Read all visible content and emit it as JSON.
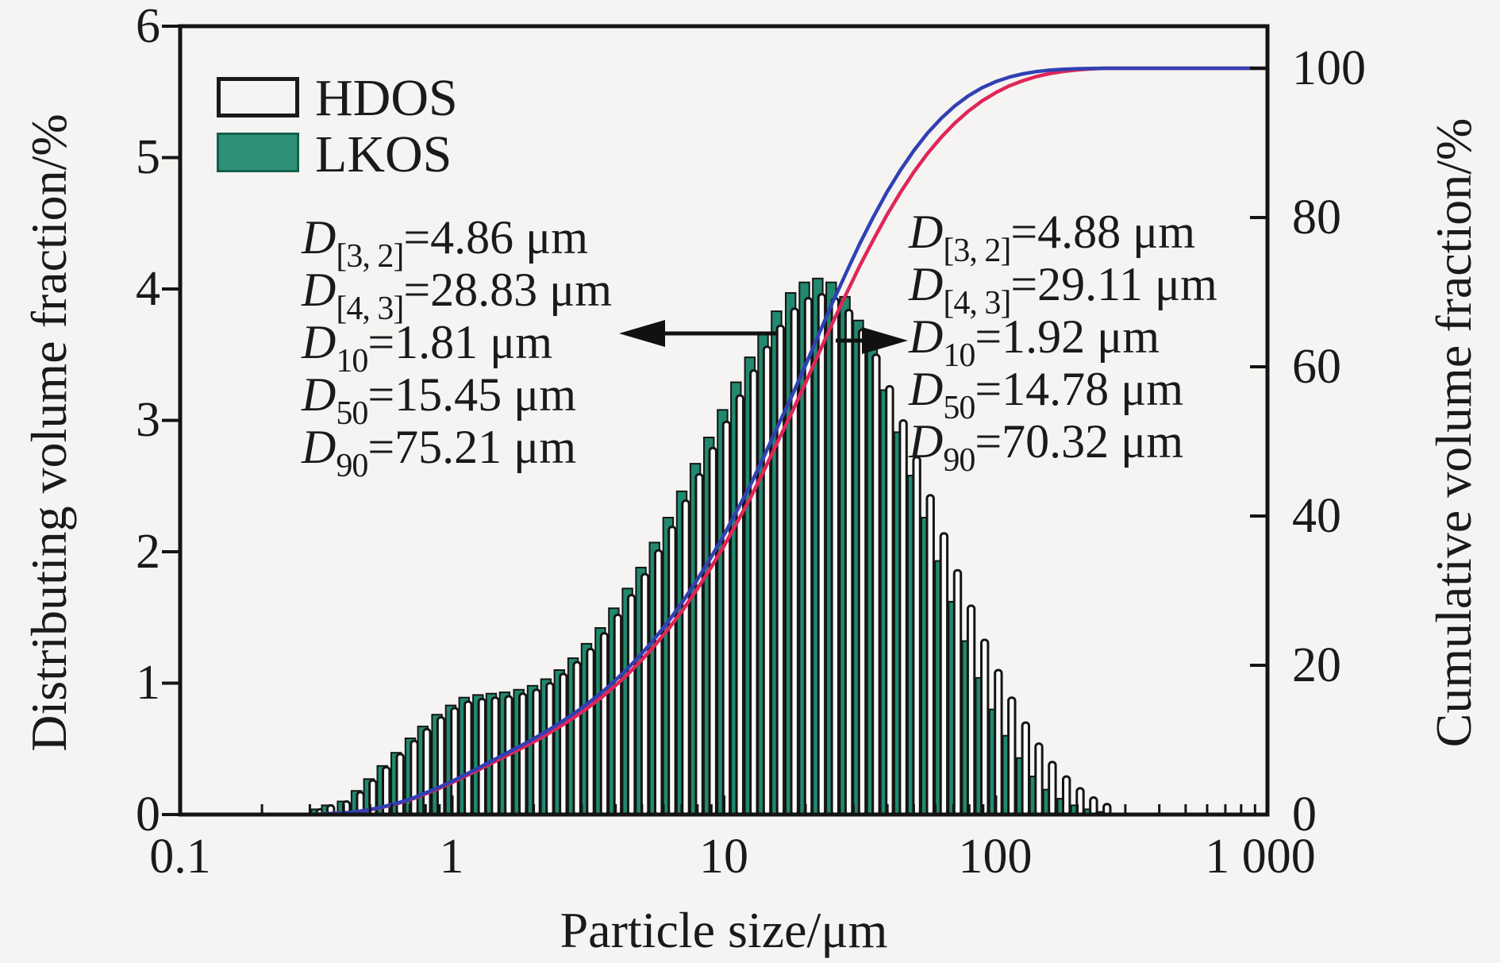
{
  "figure": {
    "background": "#f5f4f2",
    "frame_color": "#141414"
  },
  "legend": {
    "items": [
      {
        "label": "HDOS",
        "swatch": "white-outline"
      },
      {
        "label": "LKOS",
        "swatch": "teal-filled",
        "color": "#2e9077"
      }
    ]
  },
  "axes": {
    "x": {
      "title": "Particle size/μm",
      "scale": "log",
      "range": [
        0.1,
        1000
      ],
      "ticks": [
        "0.1",
        "1",
        "10",
        "100",
        "1 000"
      ]
    },
    "left": {
      "title": "Distributing volume fraction/%",
      "range": [
        0,
        6
      ],
      "ticks": [
        "0",
        "1",
        "2",
        "3",
        "4",
        "5",
        "6"
      ]
    },
    "right": {
      "title": "Cumulative volume fraction/%",
      "range": [
        0,
        100
      ],
      "ticks": [
        "0",
        "20",
        "40",
        "60",
        "80",
        "100"
      ]
    }
  },
  "annotations": {
    "left": {
      "series": "HDOS",
      "lines": [
        {
          "sym": "D",
          "sub": "[3, 2]",
          "rest": "=4.86 μm"
        },
        {
          "sym": "D",
          "sub": "[4, 3]",
          "rest": "=28.83 μm"
        },
        {
          "sym": "D",
          "sub": "10",
          "rest": "=1.81 μm"
        },
        {
          "sym": "D",
          "sub": "50",
          "rest": "=15.45 μm"
        },
        {
          "sym": "D",
          "sub": "90",
          "rest": "=75.21 μm"
        }
      ]
    },
    "right": {
      "series": "LKOS",
      "lines": [
        {
          "sym": "D",
          "sub": "[3, 2]",
          "rest": "=4.88 μm"
        },
        {
          "sym": "D",
          "sub": "[4, 3]",
          "rest": "=29.11 μm"
        },
        {
          "sym": "D",
          "sub": "10",
          "rest": "=1.92 μm"
        },
        {
          "sym": "D",
          "sub": "50",
          "rest": "=14.78 μm"
        },
        {
          "sym": "D",
          "sub": "90",
          "rest": "=70.32 μm"
        }
      ]
    }
  },
  "chart_data": {
    "type": "bar",
    "subtype": "particle-size-histogram-with-cumulative-curves",
    "x_scale": "log",
    "xlabel": "Particle size/μm",
    "x_range_um": [
      0.1,
      1000
    ],
    "left_y": {
      "label": "Distributing volume fraction/%",
      "range": [
        0,
        6
      ]
    },
    "right_y": {
      "label": "Cumulative volume fraction/%",
      "range": [
        0,
        100
      ]
    },
    "bins": {
      "sizes_um": [
        0.32,
        0.35,
        0.4,
        0.45,
        0.5,
        0.56,
        0.63,
        0.71,
        0.79,
        0.89,
        1.0,
        1.12,
        1.26,
        1.41,
        1.58,
        1.78,
        2.0,
        2.24,
        2.51,
        2.82,
        3.16,
        3.55,
        3.98,
        4.47,
        5.01,
        5.62,
        6.31,
        7.08,
        7.94,
        8.91,
        10.0,
        11.2,
        12.6,
        14.1,
        15.8,
        17.8,
        20.0,
        22.4,
        25.1,
        28.2,
        31.6,
        35.5,
        39.8,
        44.7,
        50.1,
        56.2,
        63.1,
        70.8,
        79.4,
        89.1,
        100,
        112,
        126,
        141,
        158,
        178,
        200,
        224,
        251
      ],
      "series": [
        {
          "name": "HDOS",
          "fill": "#fbfaf9",
          "outline": "#151515",
          "values": [
            0.04,
            0.07,
            0.1,
            0.17,
            0.26,
            0.36,
            0.46,
            0.56,
            0.65,
            0.74,
            0.81,
            0.86,
            0.88,
            0.89,
            0.9,
            0.92,
            0.95,
            1.0,
            1.07,
            1.16,
            1.26,
            1.38,
            1.52,
            1.67,
            1.83,
            2.01,
            2.19,
            2.39,
            2.59,
            2.79,
            2.99,
            3.19,
            3.38,
            3.56,
            3.72,
            3.85,
            3.93,
            3.96,
            3.93,
            3.84,
            3.69,
            3.5,
            3.26,
            3.0,
            2.72,
            2.43,
            2.14,
            1.86,
            1.59,
            1.33,
            1.1,
            0.89,
            0.7,
            0.54,
            0.4,
            0.29,
            0.2,
            0.13,
            0.08
          ]
        },
        {
          "name": "LKOS",
          "fill": "#21896f",
          "outline": "#151515",
          "values": [
            0.04,
            0.07,
            0.1,
            0.18,
            0.27,
            0.37,
            0.47,
            0.58,
            0.67,
            0.76,
            0.83,
            0.89,
            0.91,
            0.92,
            0.93,
            0.95,
            0.98,
            1.03,
            1.1,
            1.19,
            1.3,
            1.42,
            1.57,
            1.72,
            1.88,
            2.07,
            2.26,
            2.46,
            2.67,
            2.87,
            3.08,
            3.29,
            3.48,
            3.67,
            3.83,
            3.97,
            4.05,
            4.08,
            4.05,
            3.94,
            3.76,
            3.54,
            3.23,
            2.91,
            2.58,
            2.26,
            1.93,
            1.62,
            1.32,
            1.04,
            0.8,
            0.6,
            0.43,
            0.29,
            0.19,
            0.12,
            0.07,
            0.04,
            0.02
          ]
        }
      ]
    },
    "cumulative_curves": [
      {
        "name": "HDOS",
        "color": "#e02558",
        "source": "cumulative-of-HDOS-bins",
        "plateau_pct": 100
      },
      {
        "name": "LKOS",
        "color": "#3140b4",
        "source": "cumulative-of-LKOS-bins",
        "plateau_pct": 100
      }
    ],
    "stats": {
      "HDOS": {
        "D32_um": 4.86,
        "D43_um": 28.83,
        "D10_um": 1.81,
        "D50_um": 15.45,
        "D90_um": 75.21
      },
      "LKOS": {
        "D32_um": 4.88,
        "D43_um": 29.11,
        "D10_um": 1.92,
        "D50_um": 14.78,
        "D90_um": 70.32
      }
    }
  }
}
